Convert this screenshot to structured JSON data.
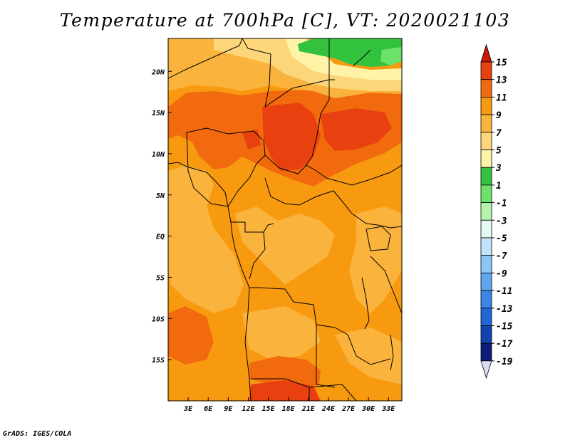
{
  "title": "Temperature at 700hPa [C], VT: 2020021103",
  "credit": "GrADS: IGES/COLA",
  "map": {
    "variable": "Temperature at 700hPa",
    "units": "C",
    "valid_time": "2020021103",
    "lon_range": [
      0,
      35
    ],
    "lat_range": [
      -20,
      24
    ],
    "lat_ticks": [
      {
        "value": 20,
        "label": "20N"
      },
      {
        "value": 15,
        "label": "15N"
      },
      {
        "value": 10,
        "label": "10N"
      },
      {
        "value": 5,
        "label": "5N"
      },
      {
        "value": 0,
        "label": "EQ"
      },
      {
        "value": -5,
        "label": "5S"
      },
      {
        "value": -10,
        "label": "10S"
      },
      {
        "value": -15,
        "label": "15S"
      }
    ],
    "lon_ticks": [
      {
        "value": 3,
        "label": "3E"
      },
      {
        "value": 6,
        "label": "6E"
      },
      {
        "value": 9,
        "label": "9E"
      },
      {
        "value": 12,
        "label": "12E"
      },
      {
        "value": 15,
        "label": "15E"
      },
      {
        "value": 18,
        "label": "18E"
      },
      {
        "value": 21,
        "label": "21E"
      },
      {
        "value": 24,
        "label": "24E"
      },
      {
        "value": 27,
        "label": "27E"
      },
      {
        "value": 30,
        "label": "30E"
      },
      {
        "value": 33,
        "label": "33E"
      }
    ]
  },
  "colorbar": {
    "levels": [
      {
        "label": "15",
        "color": "#c41a0a"
      },
      {
        "label": "13",
        "color": "#e8410f"
      },
      {
        "label": "11",
        "color": "#f26a0e"
      },
      {
        "label": "9",
        "color": "#f89a10"
      },
      {
        "label": "7",
        "color": "#fab33c"
      },
      {
        "label": "5",
        "color": "#fdd67a"
      },
      {
        "label": "3",
        "color": "#fff3a8"
      },
      {
        "label": "1",
        "color": "#33c23e"
      },
      {
        "label": "-1",
        "color": "#6de26a"
      },
      {
        "label": "-3",
        "color": "#b3f2a8"
      },
      {
        "label": "-5",
        "color": "#e2faf2"
      },
      {
        "label": "-7",
        "color": "#bfe4fa"
      },
      {
        "label": "-9",
        "color": "#8cc6f6"
      },
      {
        "label": "-11",
        "color": "#5ea6ee"
      },
      {
        "label": "-13",
        "color": "#3a86e6"
      },
      {
        "label": "-15",
        "color": "#2166d6"
      },
      {
        "label": "-17",
        "color": "#1244b0"
      },
      {
        "label": "-19",
        "color": "#0c1c78"
      }
    ],
    "lowest_color": "#dcdcf6"
  }
}
